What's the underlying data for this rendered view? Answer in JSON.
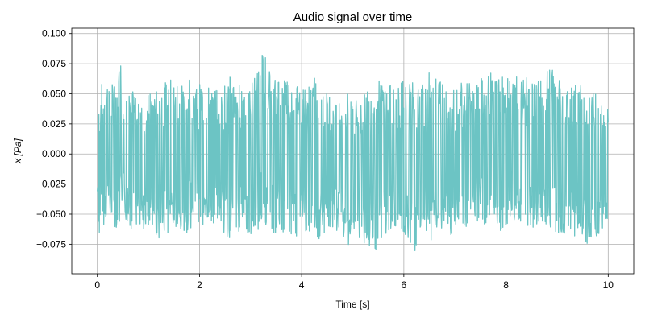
{
  "chart_data": {
    "type": "line",
    "title": "Audio signal over time",
    "xlabel": "Time [s]",
    "ylabel": "x [Pa]",
    "xlim": [
      -0.5,
      10.5
    ],
    "ylim": [
      -0.0995,
      0.1045
    ],
    "xticks": [
      0,
      2,
      4,
      6,
      8,
      10
    ],
    "yticks": [
      -0.075,
      -0.05,
      -0.025,
      0.0,
      0.025,
      0.05,
      0.075,
      0.1
    ],
    "ytick_labels": [
      "−0.075",
      "−0.050",
      "−0.025",
      "0.000",
      "0.025",
      "0.050",
      "0.075",
      "0.100"
    ],
    "grid": true,
    "series": [
      {
        "color": "#6cc4c4",
        "x": [
          0.0,
          0.05,
          0.1,
          0.2,
          0.3,
          0.35,
          0.4,
          0.45,
          0.5,
          0.6,
          0.7,
          0.8,
          0.9,
          1.0,
          1.1,
          1.2,
          1.3,
          1.4,
          1.5,
          1.6,
          1.7,
          1.8,
          1.9,
          2.0,
          2.1,
          2.2,
          2.3,
          2.4,
          2.5,
          2.6,
          2.7,
          2.8,
          2.9,
          3.0,
          3.1,
          3.2,
          3.3,
          3.35,
          3.4,
          3.5,
          3.6,
          3.7,
          3.8,
          3.9,
          4.0,
          4.1,
          4.2,
          4.3,
          4.4,
          4.5,
          4.6,
          4.7,
          4.8,
          4.9,
          5.0,
          5.1,
          5.2,
          5.3,
          5.4,
          5.5,
          5.6,
          5.7,
          5.8,
          5.9,
          6.0,
          6.1,
          6.2,
          6.3,
          6.4,
          6.5,
          6.6,
          6.7,
          6.8,
          6.9,
          7.0,
          7.1,
          7.2,
          7.3,
          7.4,
          7.5,
          7.6,
          7.7,
          7.8,
          7.9,
          7.95,
          8.0,
          8.1,
          8.2,
          8.3,
          8.4,
          8.5,
          8.6,
          8.7,
          8.8,
          8.9,
          9.0,
          9.1,
          9.2,
          9.3,
          9.4,
          9.5,
          9.6,
          9.7,
          9.8,
          9.9,
          10.0
        ],
        "upper": [
          0.043,
          0.055,
          0.06,
          0.063,
          0.058,
          0.065,
          0.062,
          0.082,
          0.06,
          0.05,
          0.052,
          0.055,
          0.048,
          0.05,
          0.052,
          0.055,
          0.058,
          0.062,
          0.065,
          0.066,
          0.06,
          0.066,
          0.055,
          0.058,
          0.06,
          0.055,
          0.052,
          0.062,
          0.06,
          0.065,
          0.063,
          0.058,
          0.062,
          0.06,
          0.066,
          0.08,
          0.095,
          0.075,
          0.065,
          0.062,
          0.07,
          0.068,
          0.06,
          0.062,
          0.055,
          0.055,
          0.062,
          0.065,
          0.06,
          0.05,
          0.052,
          0.048,
          0.045,
          0.05,
          0.048,
          0.045,
          0.047,
          0.055,
          0.065,
          0.062,
          0.06,
          0.055,
          0.065,
          0.058,
          0.063,
          0.058,
          0.06,
          0.055,
          0.062,
          0.068,
          0.063,
          0.065,
          0.066,
          0.055,
          0.058,
          0.06,
          0.065,
          0.058,
          0.055,
          0.063,
          0.062,
          0.068,
          0.064,
          0.062,
          0.065,
          0.06,
          0.068,
          0.065,
          0.06,
          0.065,
          0.058,
          0.068,
          0.06,
          0.07,
          0.075,
          0.062,
          0.065,
          0.052,
          0.06,
          0.056,
          0.06,
          0.046,
          0.055,
          0.045,
          0.05,
          0.04
        ],
        "lower": [
          -0.04,
          -0.08,
          -0.062,
          -0.05,
          -0.055,
          -0.062,
          -0.06,
          -0.062,
          -0.05,
          -0.06,
          -0.065,
          -0.055,
          -0.07,
          -0.06,
          -0.068,
          -0.07,
          -0.075,
          -0.065,
          -0.062,
          -0.068,
          -0.07,
          -0.062,
          -0.06,
          -0.058,
          -0.068,
          -0.062,
          -0.06,
          -0.055,
          -0.07,
          -0.072,
          -0.068,
          -0.065,
          -0.062,
          -0.07,
          -0.072,
          -0.058,
          -0.06,
          -0.058,
          -0.062,
          -0.075,
          -0.07,
          -0.065,
          -0.072,
          -0.07,
          -0.065,
          -0.072,
          -0.068,
          -0.075,
          -0.07,
          -0.068,
          -0.062,
          -0.065,
          -0.07,
          -0.075,
          -0.078,
          -0.072,
          -0.075,
          -0.08,
          -0.09,
          -0.085,
          -0.075,
          -0.07,
          -0.065,
          -0.07,
          -0.068,
          -0.072,
          -0.085,
          -0.07,
          -0.072,
          -0.075,
          -0.068,
          -0.065,
          -0.062,
          -0.07,
          -0.068,
          -0.062,
          -0.065,
          -0.06,
          -0.058,
          -0.055,
          -0.06,
          -0.055,
          -0.058,
          -0.065,
          -0.068,
          -0.06,
          -0.06,
          -0.055,
          -0.058,
          -0.062,
          -0.06,
          -0.065,
          -0.058,
          -0.06,
          -0.065,
          -0.07,
          -0.068,
          -0.065,
          -0.068,
          -0.072,
          -0.075,
          -0.078,
          -0.07,
          -0.075,
          -0.07,
          -0.062
        ]
      }
    ]
  }
}
